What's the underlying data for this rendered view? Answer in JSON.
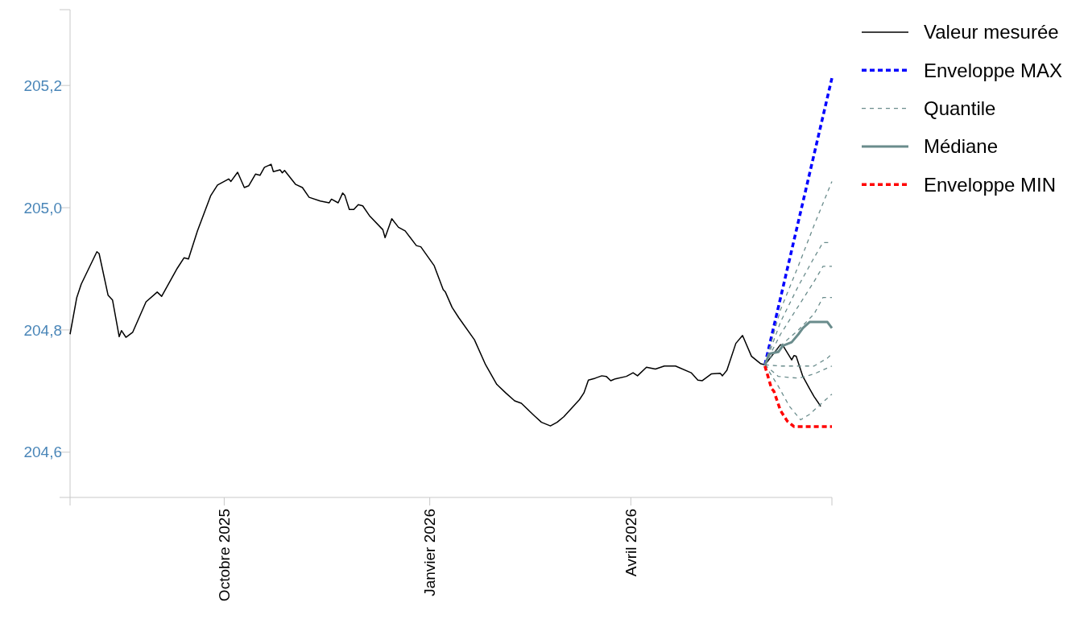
{
  "chart_data": {
    "type": "line",
    "legend": "right",
    "grid": false,
    "xlim": [
      "2025-07-24",
      "2026-06-30"
    ],
    "xticks": [
      {
        "value": "2025-07-24",
        "label": null
      },
      {
        "value": "2025-10-01",
        "label": "Octobre 2025"
      },
      {
        "value": "2026-01-01",
        "label": "Janvier 2026"
      },
      {
        "value": "2026-04-01",
        "label": "Avril 2026"
      },
      {
        "value": "2026-06-30",
        "label": null
      }
    ],
    "ylim": [
      204.526,
      205.324
    ],
    "yticks": [
      {
        "value": 204.6,
        "label": "204,6"
      },
      {
        "value": 204.8,
        "label": "204,8"
      },
      {
        "value": 205.0,
        "label": "205,0"
      },
      {
        "value": 205.2,
        "label": "205,2"
      },
      {
        "value": 205.324,
        "label": null
      }
    ],
    "series": [
      {
        "name": "Valeur mesurée",
        "color": "#000000",
        "line_style": "solid",
        "x": [
          "2025-07-24",
          "2025-07-27",
          "2025-07-29",
          "2025-08-05",
          "2025-08-06",
          "2025-08-10",
          "2025-08-12",
          "2025-08-15",
          "2025-08-16",
          "2025-08-18",
          "2025-08-21",
          "2025-08-27",
          "2025-09-01",
          "2025-09-03",
          "2025-09-10",
          "2025-09-13",
          "2025-09-15",
          "2025-09-19",
          "2025-09-25",
          "2025-09-28",
          "2025-10-03",
          "2025-10-04",
          "2025-10-07",
          "2025-10-10",
          "2025-10-12",
          "2025-10-15",
          "2025-10-17",
          "2025-10-19",
          "2025-10-22",
          "2025-10-23",
          "2025-10-26",
          "2025-10-27",
          "2025-10-28",
          "2025-11-02",
          "2025-11-05",
          "2025-11-08",
          "2025-11-13",
          "2025-11-17",
          "2025-11-18",
          "2025-11-21",
          "2025-11-23",
          "2025-11-24",
          "2025-11-26",
          "2025-11-28",
          "2025-11-30",
          "2025-12-02",
          "2025-12-05",
          "2025-12-11",
          "2025-12-12",
          "2025-12-15",
          "2025-12-18",
          "2025-12-21",
          "2025-12-26",
          "2025-12-28",
          "2026-01-03",
          "2026-01-07",
          "2026-01-08",
          "2026-01-11",
          "2026-01-14",
          "2026-01-21",
          "2026-01-26",
          "2026-01-31",
          "2026-02-04",
          "2026-02-08",
          "2026-02-11",
          "2026-02-15",
          "2026-02-17",
          "2026-02-20",
          "2026-02-24",
          "2026-02-27",
          "2026-03-02",
          "2026-03-09",
          "2026-03-11",
          "2026-03-13",
          "2026-03-16",
          "2026-03-19",
          "2026-03-21",
          "2026-03-23",
          "2026-03-25",
          "2026-03-30",
          "2026-04-02",
          "2026-04-04",
          "2026-04-08",
          "2026-04-12",
          "2026-04-16",
          "2026-04-21",
          "2026-04-28",
          "2026-05-01",
          "2026-05-03",
          "2026-05-07",
          "2026-05-11",
          "2026-05-12",
          "2026-05-14",
          "2026-05-18",
          "2026-05-21",
          "2026-05-25",
          "2026-05-29",
          "2026-05-31",
          "2026-06-07",
          "2026-06-08",
          "2026-06-12",
          "2026-06-13",
          "2026-06-14",
          "2026-06-17",
          "2026-06-20",
          "2026-06-22",
          "2026-06-25"
        ],
        "values": [
          204.793,
          204.853,
          204.875,
          204.928,
          204.925,
          204.857,
          204.849,
          204.789,
          204.799,
          204.788,
          204.796,
          204.846,
          204.862,
          204.855,
          204.901,
          204.918,
          204.916,
          204.962,
          205.02,
          205.037,
          205.047,
          205.043,
          205.058,
          205.033,
          205.036,
          205.055,
          205.053,
          205.066,
          205.071,
          205.059,
          205.062,
          205.057,
          205.061,
          205.038,
          205.033,
          205.017,
          205.011,
          205.008,
          205.014,
          205.008,
          205.024,
          205.02,
          204.997,
          204.997,
          205.005,
          205.003,
          204.987,
          204.964,
          204.951,
          204.982,
          204.968,
          204.962,
          204.938,
          204.936,
          204.905,
          204.866,
          204.862,
          204.837,
          204.82,
          204.784,
          204.743,
          204.711,
          204.697,
          204.684,
          204.68,
          204.666,
          204.659,
          204.649,
          204.643,
          204.649,
          204.658,
          204.686,
          204.697,
          204.718,
          204.721,
          204.725,
          204.724,
          204.717,
          204.72,
          204.724,
          204.73,
          204.725,
          204.739,
          204.736,
          204.741,
          204.741,
          204.73,
          204.718,
          204.717,
          204.728,
          204.729,
          204.725,
          204.734,
          204.778,
          204.791,
          204.757,
          204.745,
          204.743,
          204.776,
          204.775,
          204.751,
          204.758,
          204.757,
          204.724,
          204.704,
          204.691,
          204.675
        ]
      },
      {
        "name": "Enveloppe MAX",
        "color": "#0000ff",
        "line_style": "dotted",
        "x": [
          "2026-05-31",
          "2026-06-30"
        ],
        "values": [
          204.743,
          205.212
        ]
      },
      {
        "name": "Quantile",
        "color": "#6a8c8c",
        "line_style": "dashed",
        "x": [
          "2026-05-31",
          "2026-06-07",
          "2026-06-15",
          "2026-06-22",
          "2026-06-30"
        ],
        "values": [
          204.743,
          204.833,
          204.905,
          204.971,
          205.043
        ]
      },
      {
        "color": "#6a8c8c",
        "line_style": "dashed",
        "x": [
          "2026-05-31",
          "2026-06-07",
          "2026-06-15",
          "2026-06-22",
          "2026-06-26",
          "2026-06-30"
        ],
        "values": [
          204.743,
          204.813,
          204.872,
          204.918,
          204.943,
          204.943
        ]
      },
      {
        "color": "#6a8c8c",
        "line_style": "dashed",
        "x": [
          "2026-05-31",
          "2026-06-07",
          "2026-06-15",
          "2026-06-22",
          "2026-06-26",
          "2026-06-30"
        ],
        "values": [
          204.743,
          204.793,
          204.839,
          204.879,
          204.904,
          204.904
        ]
      },
      {
        "color": "#6a8c8c",
        "line_style": "dashed",
        "x": [
          "2026-05-31",
          "2026-06-07",
          "2026-06-15",
          "2026-06-22",
          "2026-06-26",
          "2026-06-30"
        ],
        "values": [
          204.743,
          204.774,
          204.8,
          204.826,
          204.853,
          204.853
        ]
      },
      {
        "color": "#6a8c8c",
        "line_style": "dashed",
        "x": [
          "2026-05-31",
          "2026-06-07",
          "2026-06-15",
          "2026-06-22",
          "2026-06-28",
          "2026-06-30"
        ],
        "values": [
          204.743,
          204.741,
          204.741,
          204.741,
          204.754,
          204.761
        ]
      },
      {
        "color": "#6a8c8c",
        "line_style": "dashed",
        "x": [
          "2026-05-31",
          "2026-06-06",
          "2026-06-15",
          "2026-06-22",
          "2026-06-30"
        ],
        "values": [
          204.743,
          204.724,
          204.721,
          204.728,
          204.741
        ]
      },
      {
        "color": "#6a8c8c",
        "line_style": "dashed",
        "x": [
          "2026-05-31",
          "2026-06-06",
          "2026-06-11",
          "2026-06-16",
          "2026-06-20",
          "2026-06-26",
          "2026-06-30"
        ],
        "values": [
          204.743,
          204.708,
          204.675,
          204.653,
          204.662,
          204.682,
          204.695
        ]
      },
      {
        "name": "Médiane",
        "color": "#6a8c8c",
        "line_style": "solid",
        "x": [
          "2026-05-31",
          "2026-06-02",
          "2026-06-06",
          "2026-06-08",
          "2026-06-12",
          "2026-06-15",
          "2026-06-17",
          "2026-06-20",
          "2026-06-28",
          "2026-06-30"
        ],
        "values": [
          204.743,
          204.761,
          204.764,
          204.774,
          204.78,
          204.793,
          204.803,
          204.813,
          204.813,
          204.803
        ]
      },
      {
        "name": "Enveloppe MIN",
        "color": "#ff0000",
        "line_style": "dotted",
        "x": [
          "2026-05-31",
          "2026-06-03",
          "2026-06-04",
          "2026-06-07",
          "2026-06-10",
          "2026-06-13",
          "2026-06-30"
        ],
        "values": [
          204.741,
          204.704,
          204.7,
          204.668,
          204.651,
          204.642,
          204.642
        ]
      }
    ]
  }
}
